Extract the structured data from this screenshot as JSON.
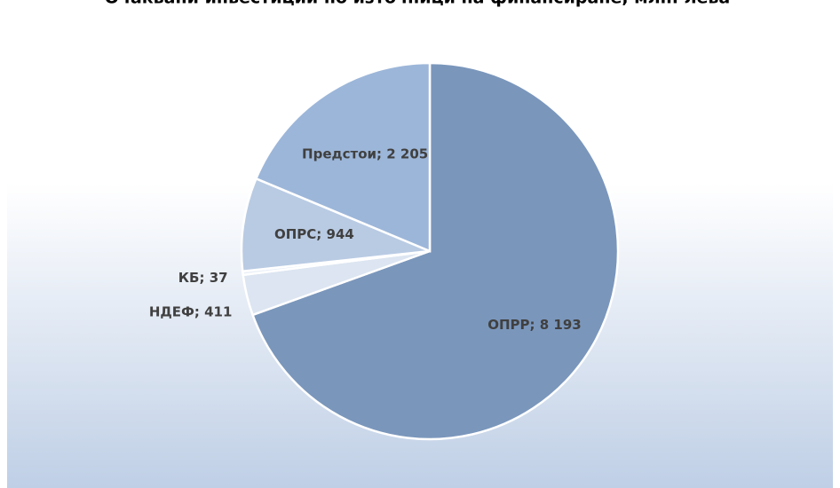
{
  "chart_data": {
    "type": "pie",
    "title": "Очаквани инвестиции по източници на финансиране, млн. лева",
    "categories": [
      "ОПРР",
      "НДЕФ",
      "КБ",
      "ОПРС",
      "Предстои"
    ],
    "values": [
      8193,
      411,
      37,
      944,
      2205
    ],
    "value_labels": [
      "8 193",
      "411",
      "37",
      "944",
      "2 205"
    ],
    "colors": [
      "#7a96bb",
      "#dce5f1",
      "#e9eff7",
      "#b9cbe3",
      "#9cb6d9"
    ]
  }
}
